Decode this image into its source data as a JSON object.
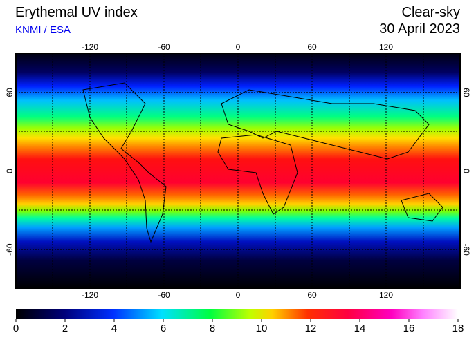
{
  "header": {
    "title": "Erythemal UV index",
    "source": "KNMI / ESA",
    "sky": "Clear-sky",
    "date": "30 April 2023"
  },
  "map": {
    "lon_range": [
      -180,
      180
    ],
    "lat_range": [
      -90,
      90
    ],
    "lon_ticks": [
      -120,
      -60,
      0,
      60,
      120
    ],
    "lat_ticks": [
      60,
      0,
      -60
    ]
  },
  "colorbar": {
    "range": [
      0,
      18
    ],
    "ticks": [
      0,
      2,
      4,
      6,
      8,
      10,
      12,
      14,
      16,
      18
    ]
  }
}
